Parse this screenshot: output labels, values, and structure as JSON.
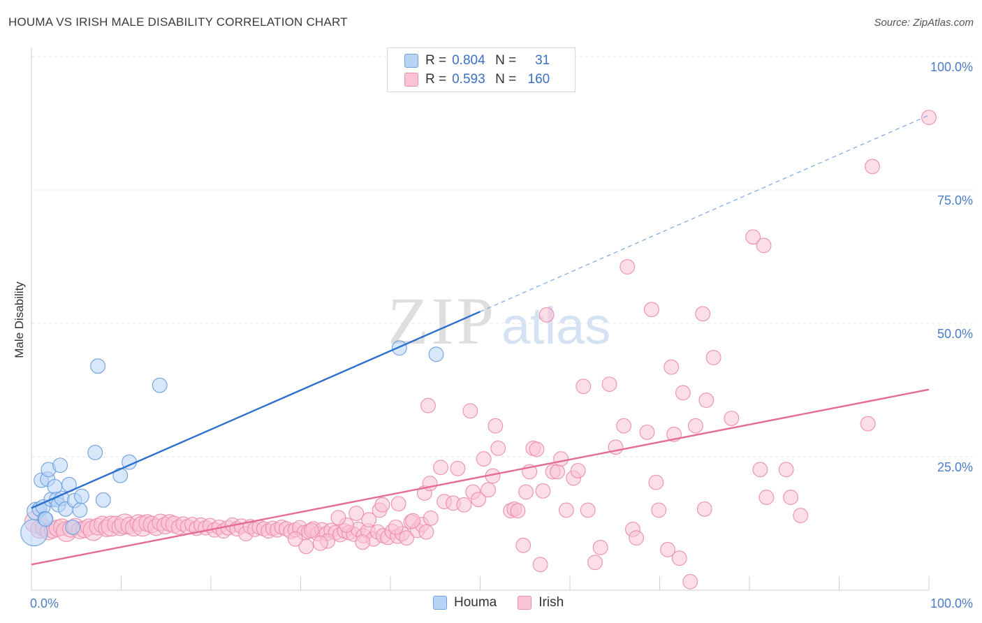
{
  "header": {
    "title": "HOUMA VS IRISH MALE DISABILITY CORRELATION CHART",
    "source": "Source: ZipAtlas.com"
  },
  "watermark": {
    "zip": "ZIP",
    "atlas": "atlas"
  },
  "legend": {
    "r_label": "R =",
    "n_label": "N =",
    "series": [
      {
        "name": "Houma",
        "r": "0.804",
        "n": "31",
        "fill": "#b8d4f5",
        "stroke": "#6ea0e0"
      },
      {
        "name": "Irish",
        "r": "0.593",
        "n": "160",
        "fill": "#f9c3d3",
        "stroke": "#ec8fac"
      }
    ]
  },
  "chart_data": {
    "type": "scatter",
    "title": "HOUMA VS IRISH MALE DISABILITY CORRELATION CHART",
    "xlabel": "",
    "ylabel": "Male Disability",
    "xlim": [
      0,
      100
    ],
    "ylim": [
      0,
      100
    ],
    "x_tick_labels": [
      "0.0%",
      "100.0%"
    ],
    "y_tick_labels": [
      {
        "value": 25,
        "label": "25.0%"
      },
      {
        "value": 50,
        "label": "50.0%"
      },
      {
        "value": 75,
        "label": "75.0%"
      },
      {
        "value": 100,
        "label": "100.0%"
      }
    ],
    "grid": true,
    "series": [
      {
        "name": "Houma",
        "color": "#6ea0e0",
        "fill": "#b8d4f5",
        "trend_color": "#2b6fd0",
        "trend": {
          "x0": 0,
          "y0": 15.4,
          "x1": 50,
          "y1": 52.2,
          "dashed_to_x": 100,
          "dashed_to_y": 89.0
        },
        "points": [
          [
            0.3,
            10.8,
            2.4
          ],
          [
            0.5,
            14.8,
            1.6
          ],
          [
            0.9,
            15.2,
            1.3
          ],
          [
            1.1,
            20.6,
            1.3
          ],
          [
            1.3,
            15.6,
            1.3
          ],
          [
            1.5,
            13.4,
            1.3
          ],
          [
            1.6,
            13.3,
            1.3
          ],
          [
            1.8,
            20.8,
            1.3
          ],
          [
            1.9,
            22.6,
            1.3
          ],
          [
            2.2,
            17.0,
            1.3
          ],
          [
            2.6,
            19.4,
            1.3
          ],
          [
            2.8,
            17.0,
            1.3
          ],
          [
            3.0,
            16.0,
            1.3
          ],
          [
            3.2,
            23.4,
            1.3
          ],
          [
            3.4,
            17.2,
            1.3
          ],
          [
            3.8,
            15.2,
            1.3
          ],
          [
            4.2,
            19.8,
            1.3
          ],
          [
            4.6,
            11.8,
            1.3
          ],
          [
            4.8,
            16.8,
            1.3
          ],
          [
            5.4,
            15.0,
            1.3
          ],
          [
            5.6,
            17.6,
            1.3
          ],
          [
            7.1,
            25.8,
            1.3
          ],
          [
            7.4,
            42.0,
            1.3
          ],
          [
            8.0,
            16.9,
            1.3
          ],
          [
            9.9,
            21.5,
            1.3
          ],
          [
            10.9,
            24.0,
            1.3
          ],
          [
            14.3,
            38.4,
            1.3
          ],
          [
            41.0,
            45.4,
            1.3
          ],
          [
            45.1,
            44.2,
            1.3
          ]
        ]
      },
      {
        "name": "Irish",
        "color": "#ec8fac",
        "fill": "#f9c3d3",
        "trend_color": "#e56b97",
        "trend": {
          "x0": 0,
          "y0": 4.8,
          "x1": 100,
          "y1": 37.6
        },
        "points": [
          [
            0.5,
            12.8,
            2.0
          ],
          [
            0.9,
            11.4,
            1.6
          ],
          [
            1.4,
            11.7,
            1.5
          ],
          [
            1.9,
            11.0,
            1.5
          ],
          [
            2.4,
            11.3,
            1.5
          ],
          [
            2.9,
            11.6,
            1.5
          ],
          [
            3.4,
            11.8,
            1.5
          ],
          [
            3.9,
            11.0,
            1.8
          ],
          [
            4.4,
            11.5,
            1.5
          ],
          [
            4.9,
            11.9,
            1.5
          ],
          [
            5.4,
            11.2,
            1.5
          ],
          [
            5.9,
            11.4,
            1.5
          ],
          [
            6.4,
            11.8,
            1.5
          ],
          [
            6.9,
            11.2,
            1.8
          ],
          [
            7.4,
            11.9,
            1.5
          ],
          [
            7.9,
            12.3,
            1.5
          ],
          [
            8.4,
            11.6,
            1.5
          ],
          [
            8.9,
            12.0,
            1.8
          ],
          [
            9.4,
            12.3,
            1.5
          ],
          [
            9.9,
            11.8,
            1.5
          ],
          [
            10.4,
            12.4,
            1.8
          ],
          [
            10.9,
            12.1,
            1.5
          ],
          [
            11.4,
            11.7,
            1.5
          ],
          [
            11.9,
            12.6,
            1.5
          ],
          [
            12.4,
            12.0,
            1.8
          ],
          [
            12.9,
            12.6,
            1.5
          ],
          [
            13.4,
            12.3,
            1.5
          ],
          [
            13.9,
            11.8,
            1.5
          ],
          [
            14.4,
            12.7,
            1.5
          ],
          [
            14.9,
            12.1,
            1.5
          ],
          [
            15.4,
            12.6,
            1.5
          ],
          [
            15.9,
            12.3,
            1.5
          ],
          [
            16.4,
            11.8,
            1.3
          ],
          [
            16.9,
            12.4,
            1.3
          ],
          [
            17.4,
            11.9,
            1.3
          ],
          [
            17.9,
            12.3,
            1.3
          ],
          [
            18.4,
            11.6,
            1.3
          ],
          [
            18.9,
            12.2,
            1.3
          ],
          [
            19.4,
            11.7,
            1.3
          ],
          [
            19.9,
            12.1,
            1.3
          ],
          [
            20.4,
            11.3,
            1.3
          ],
          [
            20.9,
            11.8,
            1.3
          ],
          [
            21.4,
            11.1,
            1.3
          ],
          [
            21.9,
            11.7,
            1.3
          ],
          [
            22.4,
            12.2,
            1.3
          ],
          [
            22.9,
            11.5,
            1.3
          ],
          [
            23.4,
            12.0,
            1.3
          ],
          [
            23.9,
            10.6,
            1.3
          ],
          [
            24.4,
            11.9,
            1.3
          ],
          [
            24.9,
            11.4,
            1.3
          ],
          [
            25.4,
            11.8,
            1.3
          ],
          [
            25.9,
            11.5,
            1.3
          ],
          [
            26.4,
            11.1,
            1.3
          ],
          [
            26.9,
            11.6,
            1.3
          ],
          [
            27.4,
            11.3,
            1.3
          ],
          [
            27.9,
            11.8,
            1.3
          ],
          [
            28.4,
            11.5,
            1.3
          ],
          [
            28.9,
            11.0,
            1.3
          ],
          [
            29.4,
            11.3,
            1.3
          ],
          [
            29.9,
            11.7,
            1.3
          ],
          [
            30.4,
            10.8,
            1.3
          ],
          [
            30.9,
            11.0,
            1.3
          ],
          [
            31.4,
            11.5,
            1.3
          ],
          [
            31.9,
            10.6,
            1.3
          ],
          [
            32.4,
            11.3,
            1.3
          ],
          [
            32.9,
            10.6,
            1.3
          ],
          [
            33.4,
            11.2,
            1.3
          ],
          [
            33.9,
            10.8,
            1.3
          ],
          [
            34.4,
            10.4,
            1.3
          ],
          [
            34.9,
            11.1,
            1.3
          ],
          [
            35.4,
            10.8,
            1.3
          ],
          [
            35.9,
            10.5,
            1.3
          ],
          [
            36.4,
            11.4,
            1.3
          ],
          [
            37.0,
            10.2,
            1.3
          ],
          [
            37.5,
            11.1,
            1.3
          ],
          [
            38.1,
            9.6,
            1.3
          ],
          [
            38.6,
            10.9,
            1.3
          ],
          [
            39.2,
            10.2,
            1.3
          ],
          [
            39.7,
            9.9,
            1.3
          ],
          [
            40.2,
            11.0,
            1.3
          ],
          [
            40.8,
            10.1,
            1.3
          ],
          [
            41.3,
            10.6,
            1.3
          ],
          [
            41.8,
            9.8,
            1.3
          ],
          [
            42.3,
            12.8,
            1.3
          ],
          [
            43.0,
            11.2,
            1.3
          ],
          [
            43.5,
            12.3,
            1.3
          ],
          [
            44.0,
            10.9,
            1.3
          ],
          [
            44.5,
            13.5,
            1.3
          ],
          [
            40.6,
            11.8,
            1.3
          ],
          [
            38.8,
            15.0,
            1.3
          ],
          [
            37.6,
            13.2,
            1.3
          ],
          [
            36.2,
            14.4,
            1.3
          ],
          [
            35.1,
            12.2,
            1.3
          ],
          [
            34.2,
            13.6,
            1.3
          ],
          [
            33.0,
            9.2,
            1.3
          ],
          [
            32.2,
            8.8,
            1.3
          ],
          [
            30.6,
            8.2,
            1.3
          ],
          [
            29.4,
            9.6,
            1.3
          ],
          [
            31.2,
            11.2,
            1.3
          ],
          [
            42.5,
            13.0,
            1.3
          ],
          [
            36.9,
            9.0,
            1.3
          ],
          [
            39.1,
            16.0,
            1.3
          ],
          [
            40.9,
            16.2,
            1.3
          ],
          [
            43.8,
            18.2,
            1.3
          ],
          [
            44.4,
            20.0,
            1.3
          ],
          [
            44.2,
            34.6,
            1.3
          ],
          [
            45.6,
            23.0,
            1.3
          ],
          [
            46.0,
            16.6,
            1.3
          ],
          [
            47.0,
            16.3,
            1.3
          ],
          [
            47.5,
            22.8,
            1.3
          ],
          [
            48.2,
            16.0,
            1.3
          ],
          [
            48.9,
            33.6,
            1.3
          ],
          [
            49.2,
            18.4,
            1.3
          ],
          [
            49.8,
            17.0,
            1.3
          ],
          [
            50.4,
            24.6,
            1.3
          ],
          [
            50.9,
            18.8,
            1.3
          ],
          [
            51.4,
            21.4,
            1.3
          ],
          [
            51.7,
            30.8,
            1.3
          ],
          [
            52.0,
            26.6,
            1.3
          ],
          [
            53.4,
            14.9,
            1.3
          ],
          [
            53.8,
            15.2,
            1.3
          ],
          [
            54.2,
            14.9,
            1.3
          ],
          [
            54.8,
            8.4,
            1.3
          ],
          [
            55.1,
            18.4,
            1.3
          ],
          [
            55.5,
            22.2,
            1.3
          ],
          [
            55.9,
            26.6,
            1.3
          ],
          [
            56.3,
            26.4,
            1.3
          ],
          [
            56.7,
            4.8,
            1.3
          ],
          [
            57.0,
            18.6,
            1.3
          ],
          [
            57.4,
            51.6,
            1.3
          ],
          [
            58.1,
            22.2,
            1.3
          ],
          [
            58.6,
            22.2,
            1.3
          ],
          [
            59.0,
            24.6,
            1.3
          ],
          [
            59.6,
            15.0,
            1.3
          ],
          [
            60.4,
            21.0,
            1.3
          ],
          [
            60.9,
            22.4,
            1.3
          ],
          [
            61.5,
            38.2,
            1.3
          ],
          [
            62.0,
            15.0,
            1.3
          ],
          [
            62.8,
            5.2,
            1.3
          ],
          [
            63.4,
            8.0,
            1.3
          ],
          [
            64.4,
            38.6,
            1.3
          ],
          [
            65.1,
            26.8,
            1.3
          ],
          [
            66.0,
            30.8,
            1.3
          ],
          [
            66.4,
            60.6,
            1.3
          ],
          [
            67.0,
            11.4,
            1.3
          ],
          [
            67.4,
            9.8,
            1.3
          ],
          [
            68.6,
            29.6,
            1.3
          ],
          [
            69.1,
            52.6,
            1.3
          ],
          [
            69.6,
            20.2,
            1.3
          ],
          [
            69.9,
            15.0,
            1.3
          ],
          [
            70.9,
            7.6,
            1.3
          ],
          [
            71.3,
            41.8,
            1.3
          ],
          [
            71.6,
            29.2,
            1.3
          ],
          [
            72.2,
            6.0,
            1.3
          ],
          [
            72.6,
            37.0,
            1.3
          ],
          [
            73.4,
            1.6,
            1.3
          ],
          [
            74.0,
            30.8,
            1.3
          ],
          [
            74.8,
            51.8,
            1.3
          ],
          [
            75.0,
            15.2,
            1.3
          ],
          [
            75.2,
            35.6,
            1.3
          ],
          [
            76.0,
            43.6,
            1.3
          ],
          [
            78.0,
            32.2,
            1.3
          ],
          [
            80.4,
            66.2,
            1.3
          ],
          [
            81.2,
            22.6,
            1.3
          ],
          [
            81.6,
            64.6,
            1.3
          ],
          [
            81.9,
            17.4,
            1.3
          ],
          [
            84.1,
            22.6,
            1.3
          ],
          [
            84.6,
            17.4,
            1.3
          ],
          [
            85.7,
            14.0,
            1.3
          ],
          [
            93.2,
            31.2,
            1.3
          ],
          [
            93.7,
            79.4,
            1.3
          ],
          [
            100.0,
            88.6,
            1.3
          ]
        ]
      }
    ]
  }
}
